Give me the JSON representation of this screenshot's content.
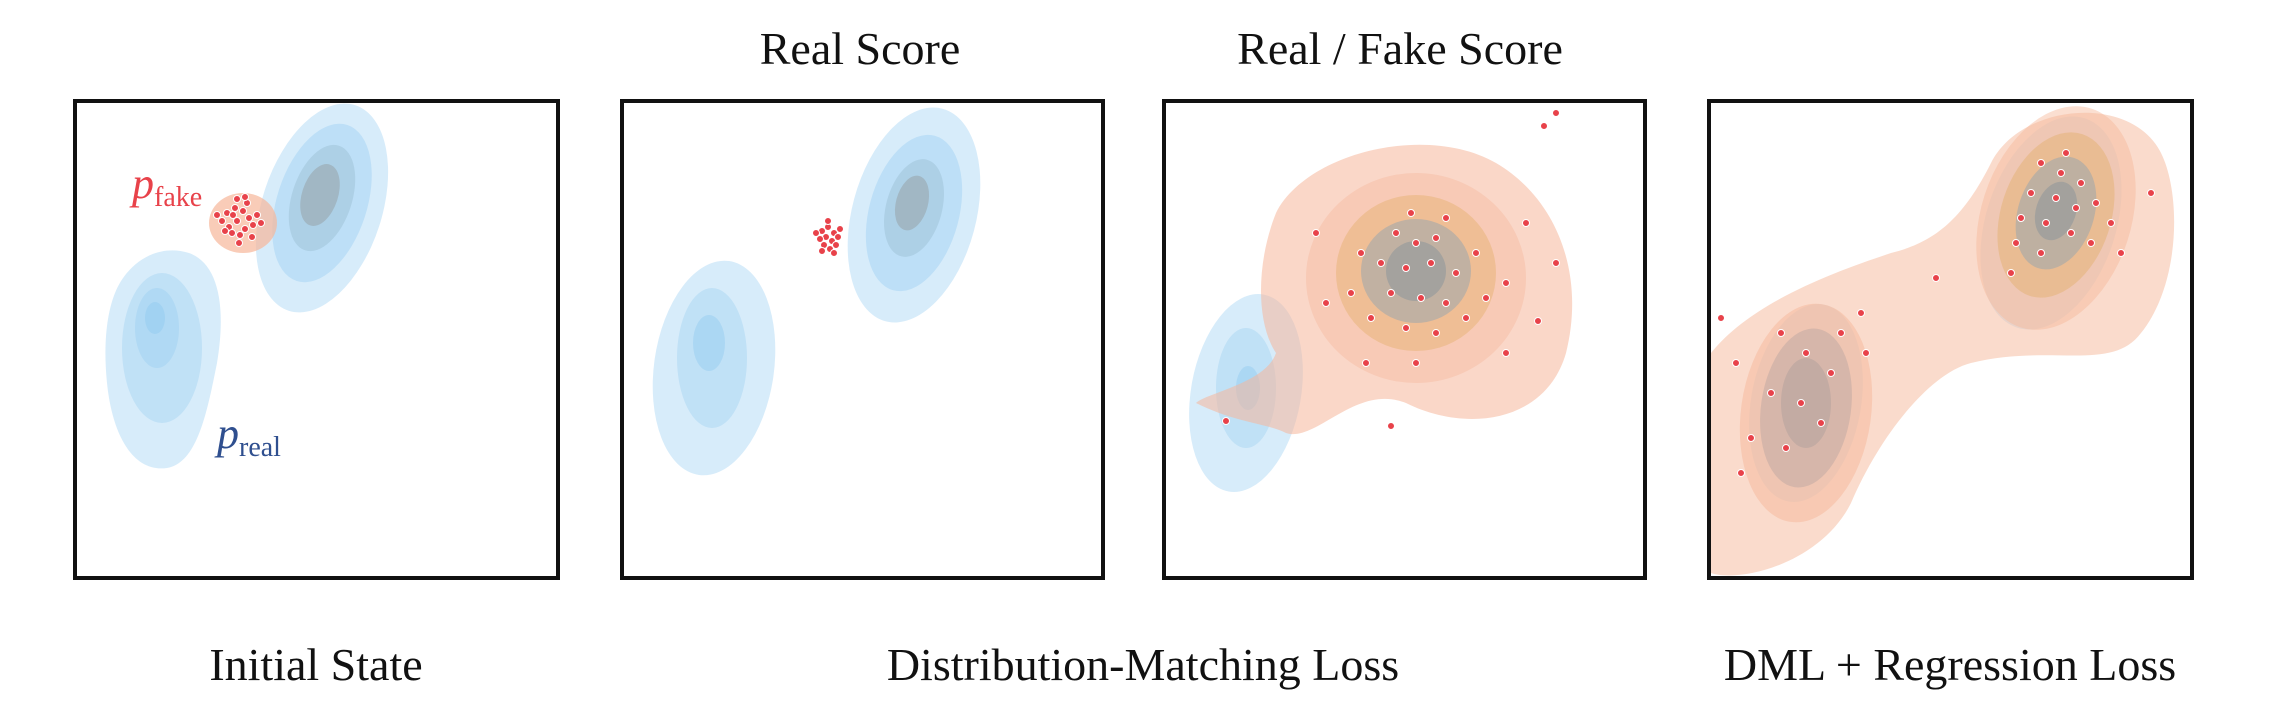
{
  "top_labels": {
    "real_score": "Real Score",
    "real_fake_score": "Real / Fake Score"
  },
  "bottom_labels": {
    "initial": "Initial State",
    "dml": "Distribution-Matching Loss",
    "dml_reg": "DML + Regression Loss"
  },
  "annotations": {
    "p_fake_base": "p",
    "p_fake_sub": "fake",
    "p_real_base": "p",
    "p_real_sub": "real"
  },
  "colors": {
    "real": "#8cc8f0",
    "real_core": "#9aa6ad",
    "fake": "#f6b79a",
    "fake_core": "#d9a24a",
    "points": "#e8424a",
    "p_fake_text": "#e8424a",
    "p_real_text": "#2f4f8f"
  }
}
